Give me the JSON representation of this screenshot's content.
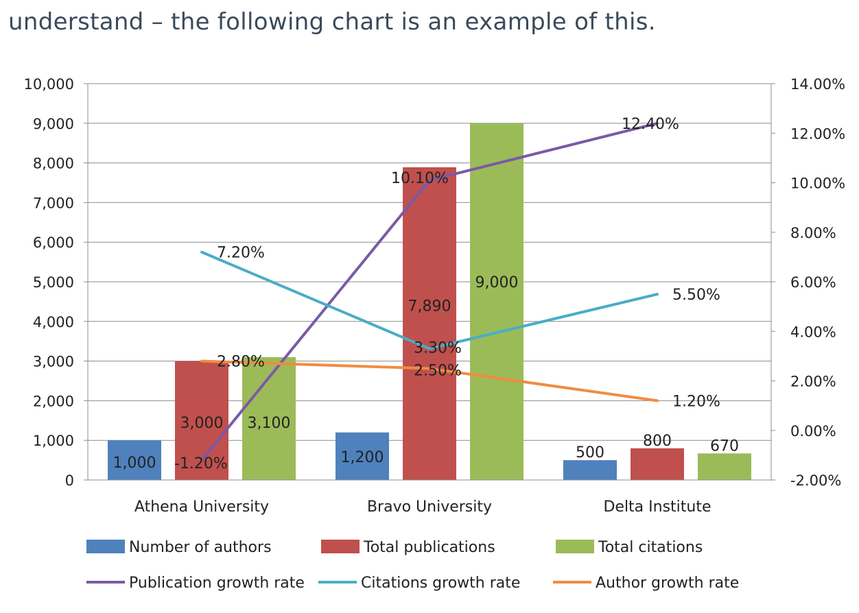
{
  "intro_text": "understand – the following chart is an example of this.",
  "chart_data": {
    "type": "bar",
    "title": "",
    "categories": [
      "Athena University",
      "Bravo University",
      "Delta Institute"
    ],
    "y_left": {
      "range": [
        0,
        10000
      ],
      "ticks": [
        0,
        1000,
        2000,
        3000,
        4000,
        5000,
        6000,
        7000,
        8000,
        9000,
        10000
      ],
      "tick_labels": [
        "0",
        "1,000",
        "2,000",
        "3,000",
        "4,000",
        "5,000",
        "6,000",
        "7,000",
        "8,000",
        "9,000",
        "10,000"
      ]
    },
    "y_right": {
      "range": [
        -2,
        14
      ],
      "ticks": [
        -2,
        0,
        2,
        4,
        6,
        8,
        10,
        12,
        14
      ],
      "tick_labels": [
        "-2.00%",
        "0.00%",
        "2.00%",
        "4.00%",
        "6.00%",
        "8.00%",
        "10.00%",
        "12.00%",
        "14.00%"
      ]
    },
    "grid": true,
    "legend_position": "bottom",
    "bar_series": [
      {
        "name": "Number of authors",
        "color": "#4f81bd",
        "values": [
          1000,
          1200,
          500
        ],
        "labels": [
          "1,000",
          "1,200",
          "500"
        ]
      },
      {
        "name": "Total publications",
        "color": "#c0504d",
        "values": [
          3000,
          7890,
          800
        ],
        "labels": [
          "3,000",
          "7,890",
          "800"
        ]
      },
      {
        "name": "Total citations",
        "color": "#9bbb59",
        "values": [
          3100,
          9000,
          670
        ],
        "labels": [
          "3,100",
          "9,000",
          "670"
        ]
      }
    ],
    "line_series": [
      {
        "name": "Publication growth rate",
        "color": "#7a5aa6",
        "axis": "right",
        "values": [
          -1.2,
          10.1,
          12.4
        ],
        "labels": [
          "-1.20%",
          "10.10%",
          "12.40%"
        ]
      },
      {
        "name": "Citations growth rate",
        "color": "#4bacc6",
        "axis": "right",
        "values": [
          7.2,
          3.3,
          5.5
        ],
        "labels": [
          "7.20%",
          "3.30%",
          "5.50%"
        ]
      },
      {
        "name": "Author growth rate",
        "color": "#f08c41",
        "axis": "right",
        "values": [
          2.8,
          2.5,
          1.2
        ],
        "labels": [
          "2.80%",
          "2.50%",
          "1.20%"
        ]
      }
    ]
  }
}
